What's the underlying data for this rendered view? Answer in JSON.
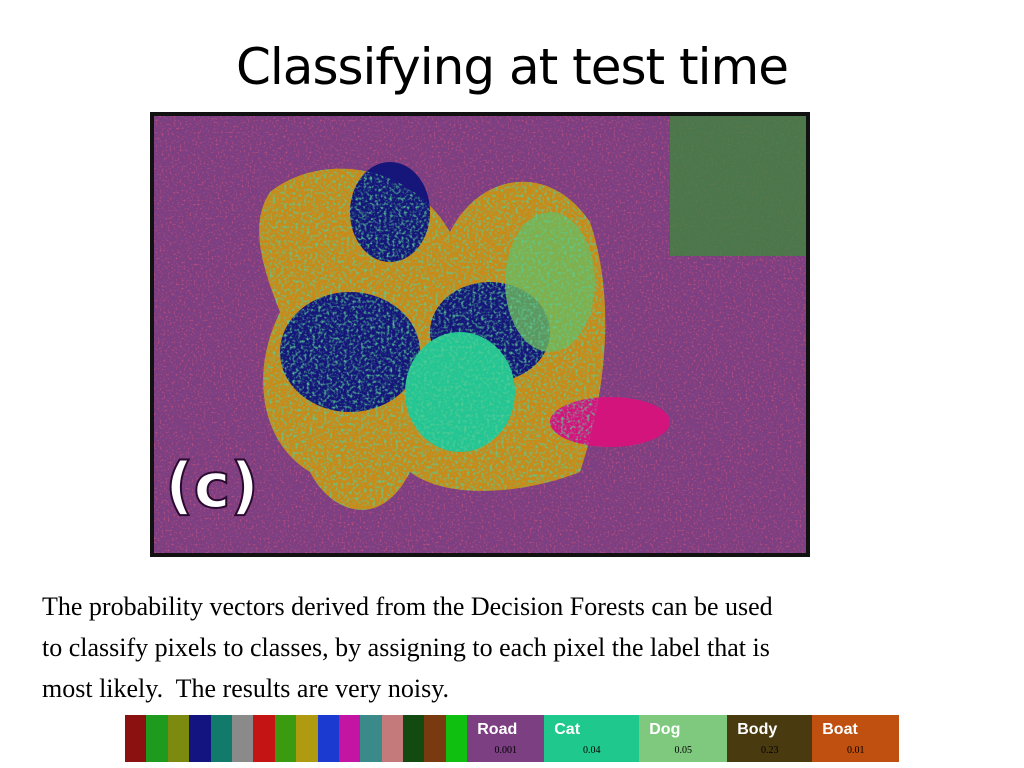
{
  "title": "Classifying at test time",
  "image": {
    "label": "(c)"
  },
  "body": [
    "The probability vectors derived from the Decision Forests can be used",
    "to classify pixels to classes, by assigning to each pixel the label that is",
    "most likely.  The results are very noisy."
  ],
  "legend": {
    "items": [
      {
        "name": "Road",
        "value": 0.001
      },
      {
        "name": "Cat",
        "value": 0.04
      },
      {
        "name": "Dog",
        "value": 0.05
      },
      {
        "name": "Body",
        "value": 0.23
      },
      {
        "name": "Boat",
        "value": 0.01
      }
    ]
  }
}
